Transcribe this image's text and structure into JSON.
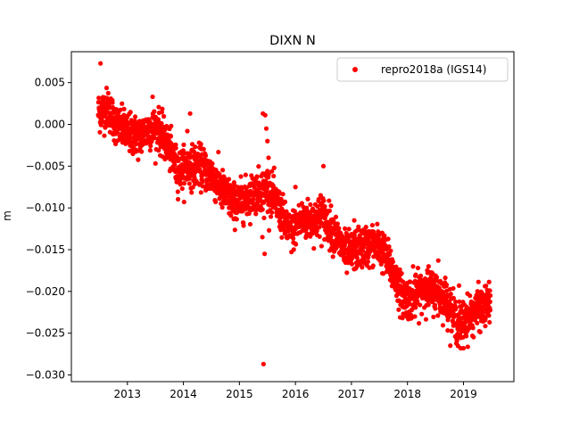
{
  "chart_data": {
    "type": "scatter",
    "title": "DIXN N",
    "xlabel": "",
    "ylabel": "m",
    "xlim": [
      2012.0,
      2019.9
    ],
    "ylim": [
      -0.0308,
      0.0087
    ],
    "x_ticks": [
      2013,
      2014,
      2015,
      2016,
      2017,
      2018,
      2019
    ],
    "x_tick_labels": [
      "2013",
      "2014",
      "2015",
      "2016",
      "2017",
      "2018",
      "2019"
    ],
    "y_ticks": [
      0.005,
      0.0,
      -0.005,
      -0.01,
      -0.015,
      -0.02,
      -0.025,
      -0.03
    ],
    "y_tick_labels": [
      "0.005",
      "0.000",
      "−0.005",
      "−0.010",
      "−0.015",
      "−0.020",
      "−0.025",
      "−0.030"
    ],
    "grid": false,
    "legend_position": "top-right",
    "series": [
      {
        "name": "repro2018a (IGS14)",
        "color": "#ff0000",
        "marker": "circle",
        "x_range": [
          2012.48,
          2019.48
        ],
        "trend_points": [
          [
            2012.5,
            0.0015
          ],
          [
            2012.65,
            0.002
          ],
          [
            2012.8,
            0.0
          ],
          [
            2013.0,
            -0.001
          ],
          [
            2013.2,
            -0.0015
          ],
          [
            2013.4,
            -0.0005
          ],
          [
            2013.55,
            -0.0005
          ],
          [
            2013.75,
            -0.003
          ],
          [
            2013.9,
            -0.0055
          ],
          [
            2014.1,
            -0.005
          ],
          [
            2014.3,
            -0.005
          ],
          [
            2014.5,
            -0.006
          ],
          [
            2014.7,
            -0.008
          ],
          [
            2014.9,
            -0.0095
          ],
          [
            2015.1,
            -0.009
          ],
          [
            2015.3,
            -0.008
          ],
          [
            2015.5,
            -0.0075
          ],
          [
            2015.7,
            -0.01
          ],
          [
            2015.9,
            -0.013
          ],
          [
            2016.1,
            -0.0115
          ],
          [
            2016.3,
            -0.0115
          ],
          [
            2016.5,
            -0.011
          ],
          [
            2016.7,
            -0.013
          ],
          [
            2016.9,
            -0.0155
          ],
          [
            2017.1,
            -0.015
          ],
          [
            2017.3,
            -0.0145
          ],
          [
            2017.5,
            -0.0145
          ],
          [
            2017.7,
            -0.017
          ],
          [
            2017.9,
            -0.0205
          ],
          [
            2018.1,
            -0.021
          ],
          [
            2018.3,
            -0.0195
          ],
          [
            2018.5,
            -0.02
          ],
          [
            2018.7,
            -0.021
          ],
          [
            2018.9,
            -0.024
          ],
          [
            2019.1,
            -0.023
          ],
          [
            2019.3,
            -0.022
          ],
          [
            2019.48,
            -0.0215
          ]
        ],
        "scatter_noise": 0.0012,
        "approx_point_count": 2400,
        "outliers": [
          [
            2012.52,
            0.0073
          ],
          [
            2014.12,
            0.0013
          ],
          [
            2013.45,
            0.0033
          ],
          [
            2014.07,
            -0.0008
          ],
          [
            2015.42,
            0.0013
          ],
          [
            2015.46,
            0.0011
          ],
          [
            2015.48,
            -0.0005
          ],
          [
            2015.5,
            -0.002
          ],
          [
            2015.52,
            -0.004
          ],
          [
            2015.44,
            -0.0112
          ],
          [
            2015.41,
            -0.0135
          ],
          [
            2015.45,
            -0.0155
          ],
          [
            2015.43,
            -0.0287
          ],
          [
            2016.5,
            -0.005
          ],
          [
            2016.0,
            -0.0075
          ],
          [
            2016.45,
            -0.0085
          ],
          [
            2017.05,
            -0.0115
          ],
          [
            2017.55,
            -0.013
          ],
          [
            2018.1,
            -0.017
          ],
          [
            2018.55,
            -0.0163
          ],
          [
            2018.92,
            -0.0193
          ],
          [
            2018.95,
            -0.0268
          ],
          [
            2019.0,
            -0.0268
          ]
        ]
      }
    ]
  }
}
